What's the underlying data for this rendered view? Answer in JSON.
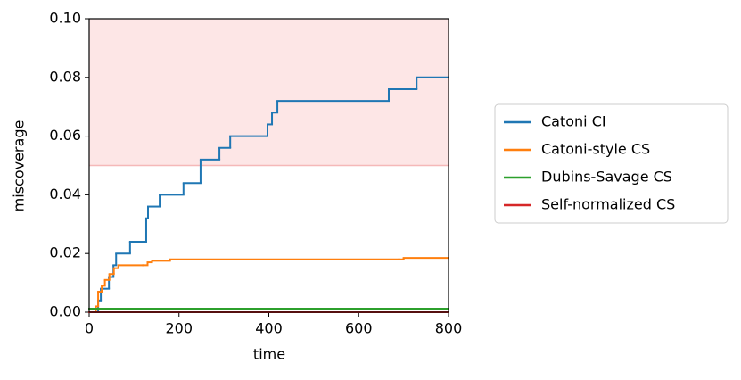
{
  "chart_data": {
    "type": "line",
    "drawstyle": "steps-post",
    "xlabel": "time",
    "ylabel": "miscoverage",
    "xlim": [
      0,
      800
    ],
    "ylim": [
      0,
      0.1
    ],
    "xticks": [
      0,
      200,
      400,
      600,
      800
    ],
    "yticks": [
      {
        "value": 0,
        "label": "0.00"
      },
      {
        "value": 0.02,
        "label": "0.02"
      },
      {
        "value": 0.04,
        "label": "0.04"
      },
      {
        "value": 0.06,
        "label": "0.06"
      },
      {
        "value": 0.08,
        "label": "0.08"
      },
      {
        "value": 0.1,
        "label": "0.10"
      }
    ],
    "shaded_region": {
      "ymin": 0.05,
      "ymax": 0.1,
      "color": "#fde6e6",
      "edge_color": "#f5b8b8"
    },
    "legend": "outside-right",
    "series": [
      {
        "name": "Catoni CI",
        "color": "#1f77b4",
        "x": [
          0,
          20,
          26,
          44,
          54,
          60,
          91,
          127,
          131,
          157,
          210,
          248,
          290,
          314,
          397,
          407,
          419,
          667,
          729,
          800
        ],
        "y": [
          0,
          0.004,
          0.008,
          0.012,
          0.016,
          0.02,
          0.024,
          0.032,
          0.036,
          0.04,
          0.044,
          0.052,
          0.056,
          0.06,
          0.064,
          0.068,
          0.072,
          0.076,
          0.08,
          0.08
        ]
      },
      {
        "name": "Catoni-style CS",
        "color": "#ff7f0e",
        "x": [
          0,
          10,
          15,
          20,
          28,
          35,
          45,
          55,
          65,
          120,
          130,
          140,
          180,
          690,
          700,
          800
        ],
        "y": [
          0,
          0,
          0.002,
          0.007,
          0.009,
          0.011,
          0.013,
          0.015,
          0.016,
          0.016,
          0.017,
          0.0175,
          0.018,
          0.018,
          0.0185,
          0.0185
        ]
      },
      {
        "name": "Dubins-Savage CS",
        "color": "#2ca02c",
        "x": [
          0,
          800
        ],
        "y": [
          0.0012,
          0.0012
        ]
      },
      {
        "name": "Self-normalized CS",
        "color": "#d62728",
        "x": [
          0,
          800
        ],
        "y": [
          0,
          0
        ]
      }
    ]
  }
}
